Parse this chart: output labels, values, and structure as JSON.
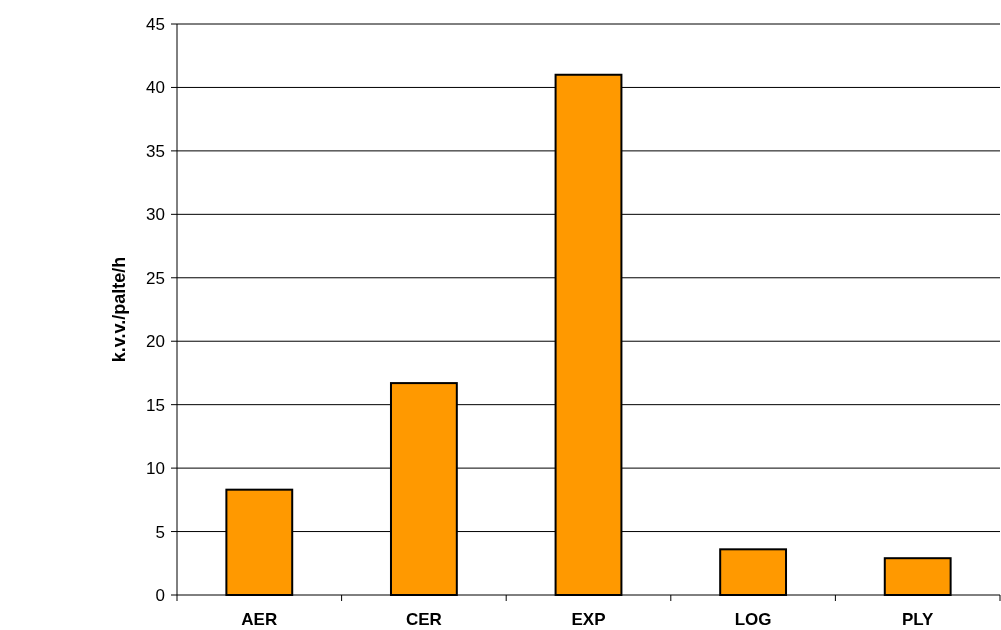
{
  "chart_data": {
    "type": "bar",
    "ylabel": "k.v.v./palte/h",
    "categories": [
      "AER",
      "CER",
      "EXP",
      "LOG",
      "PLY"
    ],
    "values": [
      8.3,
      16.7,
      41,
      3.6,
      2.9
    ],
    "color": "#ff9900",
    "ylim": [
      0,
      45
    ],
    "yticks": [
      0,
      5,
      10,
      15,
      20,
      25,
      30,
      35,
      40,
      45
    ],
    "grid": "y"
  }
}
